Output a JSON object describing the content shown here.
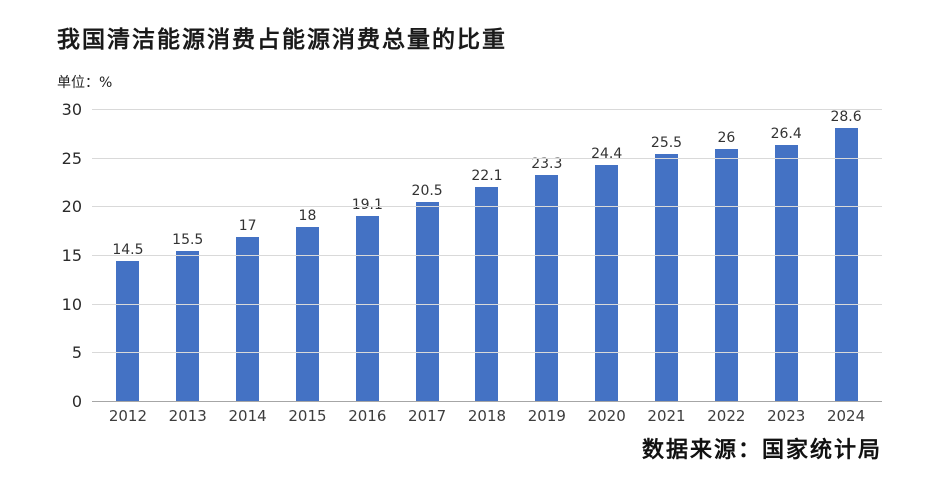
{
  "chart": {
    "title": "我国清洁能源消费占能源消费总量的比重",
    "unit_label": "单位：%",
    "source": "数据来源：国家统计局"
  },
  "chart_data": {
    "type": "bar",
    "title": "我国清洁能源消费占能源消费总量的比重",
    "unit": "%",
    "categories": [
      "2012",
      "2013",
      "2014",
      "2015",
      "2016",
      "2017",
      "2018",
      "2019",
      "2020",
      "2021",
      "2022",
      "2023",
      "2024"
    ],
    "values": [
      14.5,
      15.5,
      17,
      18,
      19.1,
      20.5,
      22.1,
      23.3,
      24.4,
      25.5,
      26,
      26.4,
      28.6
    ],
    "xlabel": "",
    "ylabel": "",
    "ylim": [
      0,
      30
    ],
    "yticks": [
      0,
      5,
      10,
      15,
      20,
      25,
      30
    ],
    "grid": true,
    "legend": false,
    "bar_color": "#4472C4",
    "source": "数据来源：国家统计局"
  }
}
